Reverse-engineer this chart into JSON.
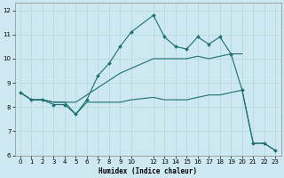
{
  "xlabel": "Humidex (Indice chaleur)",
  "bg_color": "#cde8f0",
  "line_color": "#1a7070",
  "grid_color": "#b0d8d8",
  "xlim": [
    -0.5,
    23.5
  ],
  "ylim": [
    6.0,
    12.3
  ],
  "yticks": [
    6,
    7,
    8,
    9,
    10,
    11,
    12
  ],
  "xticks": [
    0,
    1,
    2,
    3,
    4,
    5,
    6,
    7,
    8,
    9,
    10,
    12,
    13,
    14,
    15,
    16,
    17,
    18,
    19,
    20,
    21,
    22,
    23
  ],
  "line1_x": [
    0,
    1,
    2,
    3,
    4,
    5,
    6,
    7,
    8,
    9,
    10,
    12,
    13,
    14,
    15,
    16,
    17,
    18,
    19,
    20,
    21,
    22,
    23
  ],
  "line1_y": [
    8.6,
    8.3,
    8.3,
    8.1,
    8.1,
    7.7,
    8.3,
    9.3,
    9.8,
    10.5,
    11.1,
    11.8,
    10.9,
    10.5,
    10.4,
    10.9,
    10.6,
    10.9,
    10.2,
    8.7,
    6.5,
    6.5,
    6.2
  ],
  "line2_x": [
    0,
    1,
    2,
    3,
    4,
    5,
    6,
    7,
    8,
    9,
    10,
    12,
    13,
    14,
    15,
    16,
    17,
    18,
    19,
    20
  ],
  "line2_y": [
    8.6,
    8.3,
    8.3,
    8.2,
    8.2,
    8.2,
    8.5,
    8.8,
    9.1,
    9.4,
    9.6,
    10.0,
    10.0,
    10.0,
    10.0,
    10.1,
    10.0,
    10.1,
    10.2,
    10.2
  ],
  "line3_x": [
    0,
    1,
    2,
    3,
    4,
    5,
    6,
    7,
    8,
    9,
    10,
    12,
    13,
    14,
    15,
    16,
    17,
    18,
    19,
    20,
    21,
    22,
    23
  ],
  "line3_y": [
    8.6,
    8.3,
    8.3,
    8.2,
    8.2,
    7.7,
    8.2,
    8.2,
    8.2,
    8.2,
    8.3,
    8.4,
    8.3,
    8.3,
    8.3,
    8.4,
    8.5,
    8.5,
    8.6,
    8.7,
    6.5,
    6.5,
    6.2
  ]
}
